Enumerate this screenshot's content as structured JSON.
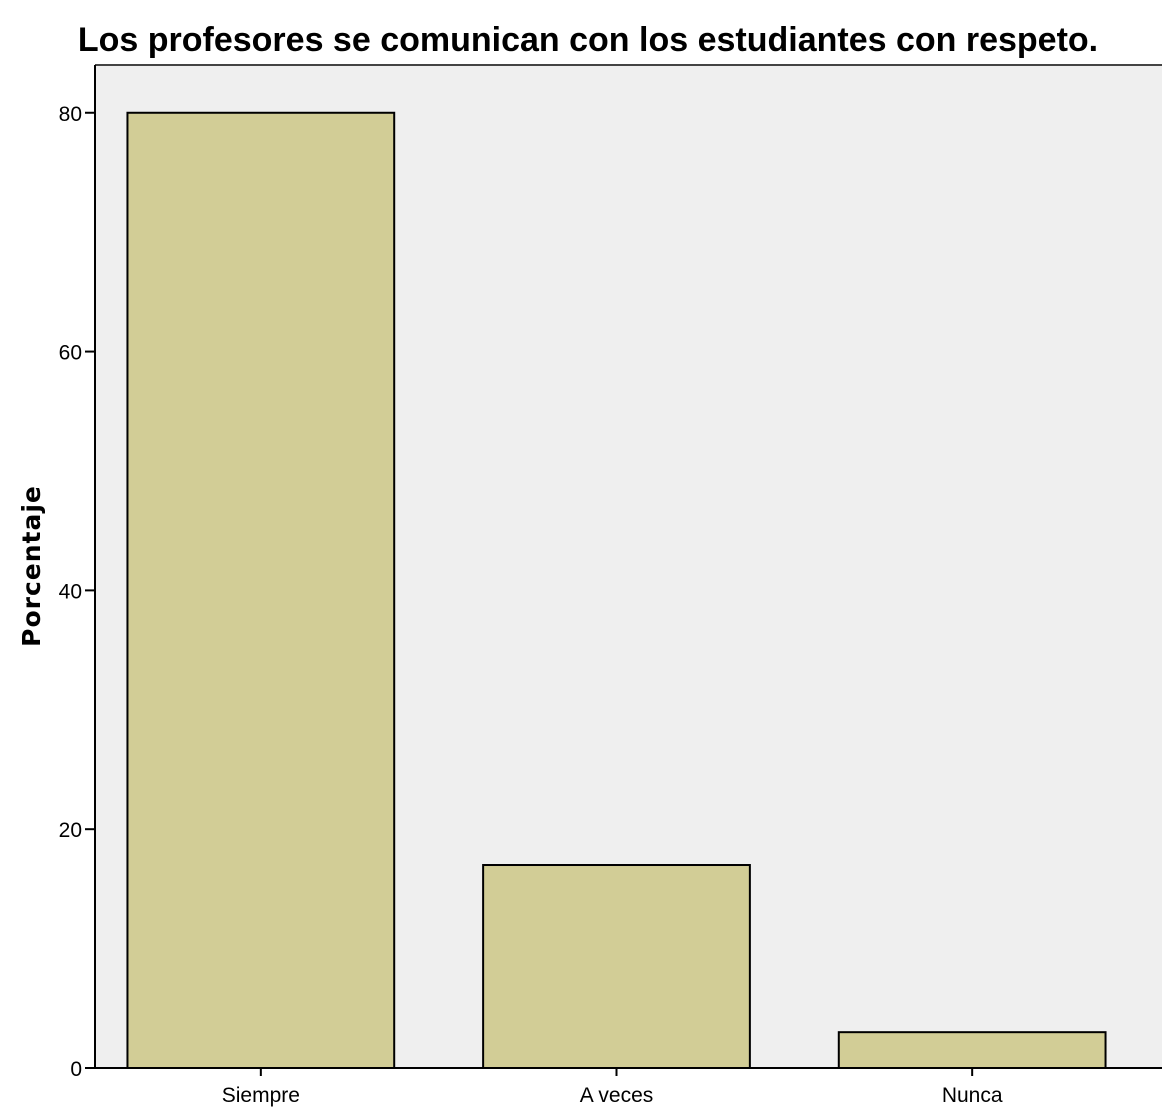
{
  "chart_data": {
    "type": "bar",
    "title": "Los profesores se comunican con los estudiantes con respeto.",
    "xlabel": "",
    "ylabel": "Porcentaje",
    "categories": [
      "Siempre",
      "A veces",
      "Nunca"
    ],
    "values": [
      80,
      17,
      3
    ],
    "ylim": [
      0,
      84
    ],
    "yticks": [
      0,
      20,
      40,
      60,
      80
    ],
    "grid": false,
    "legend": "none",
    "colors": {
      "bar_fill": "#d2cd96",
      "bar_stroke": "#000000",
      "plot_background": "#efefef",
      "page_background": "#ffffff"
    }
  }
}
